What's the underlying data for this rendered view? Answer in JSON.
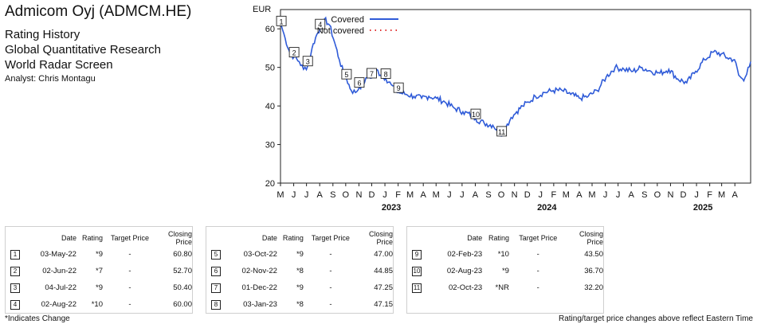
{
  "header": {
    "title": "Admicom Oyj (ADMCM.HE)",
    "line1": "Rating History",
    "line2": "Global Quantitative Research",
    "line3": "World Radar Screen",
    "analyst": "Analyst: Chris Montagu"
  },
  "chart_data": {
    "type": "line",
    "ylabel": "EUR",
    "ylim": [
      20,
      65
    ],
    "yticks": [
      20,
      30,
      40,
      50,
      60
    ],
    "xlim": [
      "2022-05-01",
      "2025-05-08"
    ],
    "month_ticks": [
      "M",
      "J",
      "J",
      "A",
      "S",
      "O",
      "N",
      "D",
      "J",
      "F",
      "M",
      "A",
      "M",
      "J",
      "J",
      "A",
      "S",
      "O",
      "N",
      "D",
      "J",
      "F",
      "M",
      "A",
      "M",
      "J",
      "J",
      "A",
      "S",
      "O",
      "N",
      "D",
      "J",
      "F",
      "M",
      "A"
    ],
    "year_labels": [
      "2023",
      "2024",
      "2025"
    ],
    "legend": [
      {
        "name": "Covered",
        "color": "#2f5bd8",
        "style": "solid"
      },
      {
        "name": "Not covered",
        "color": "#e03030",
        "style": "dotted"
      }
    ],
    "series": [
      {
        "name": "Covered",
        "points": [
          [
            "2022-05-03",
            60.8
          ],
          [
            "2022-05-12",
            57.5
          ],
          [
            "2022-05-24",
            53.5
          ],
          [
            "2022-06-02",
            52.7
          ],
          [
            "2022-06-14",
            51.5
          ],
          [
            "2022-06-24",
            49.5
          ],
          [
            "2022-07-04",
            50.4
          ],
          [
            "2022-07-14",
            55.0
          ],
          [
            "2022-07-25",
            58.5
          ],
          [
            "2022-08-02",
            60.0
          ],
          [
            "2022-08-12",
            62.5
          ],
          [
            "2022-08-24",
            61.0
          ],
          [
            "2022-09-05",
            56.5
          ],
          [
            "2022-09-16",
            52.0
          ],
          [
            "2022-09-26",
            48.5
          ],
          [
            "2022-10-03",
            47.0
          ],
          [
            "2022-10-14",
            44.0
          ],
          [
            "2022-10-24",
            43.5
          ],
          [
            "2022-11-02",
            44.85
          ],
          [
            "2022-11-14",
            46.0
          ],
          [
            "2022-11-24",
            48.0
          ],
          [
            "2022-12-01",
            47.25
          ],
          [
            "2022-12-12",
            49.5
          ],
          [
            "2022-12-22",
            48.0
          ],
          [
            "2023-01-03",
            47.15
          ],
          [
            "2023-01-16",
            45.5
          ],
          [
            "2023-01-26",
            44.0
          ],
          [
            "2023-02-02",
            43.5
          ],
          [
            "2023-02-20",
            43.0
          ],
          [
            "2023-03-10",
            42.5
          ],
          [
            "2023-03-28",
            42.0
          ],
          [
            "2023-04-14",
            42.5
          ],
          [
            "2023-05-02",
            42.0
          ],
          [
            "2023-05-22",
            41.0
          ],
          [
            "2023-06-12",
            39.5
          ],
          [
            "2023-07-03",
            38.5
          ],
          [
            "2023-07-24",
            37.5
          ],
          [
            "2023-08-02",
            36.7
          ],
          [
            "2023-08-22",
            35.5
          ],
          [
            "2023-09-11",
            35.0
          ],
          [
            "2023-09-25",
            33.5
          ],
          [
            "2023-10-02",
            32.2
          ],
          [
            "2023-10-12",
            34.5
          ],
          [
            "2023-10-24",
            37.0
          ],
          [
            "2023-11-06",
            38.5
          ],
          [
            "2023-11-20",
            40.0
          ],
          [
            "2023-12-04",
            41.0
          ],
          [
            "2023-12-20",
            42.5
          ],
          [
            "2024-01-10",
            43.5
          ],
          [
            "2024-01-31",
            44.0
          ],
          [
            "2024-02-21",
            44.0
          ],
          [
            "2024-03-12",
            43.0
          ],
          [
            "2024-04-01",
            42.0
          ],
          [
            "2024-04-22",
            42.5
          ],
          [
            "2024-05-13",
            44.0
          ],
          [
            "2024-06-03",
            47.5
          ],
          [
            "2024-06-24",
            50.0
          ],
          [
            "2024-07-15",
            49.5
          ],
          [
            "2024-08-05",
            49.0
          ],
          [
            "2024-08-26",
            50.0
          ],
          [
            "2024-09-16",
            49.0
          ],
          [
            "2024-10-07",
            48.5
          ],
          [
            "2024-10-28",
            49.5
          ],
          [
            "2024-11-18",
            47.0
          ],
          [
            "2024-12-09",
            46.0
          ],
          [
            "2024-12-30",
            49.0
          ],
          [
            "2025-01-20",
            52.0
          ],
          [
            "2025-02-10",
            54.0
          ],
          [
            "2025-02-28",
            53.5
          ],
          [
            "2025-03-14",
            52.5
          ],
          [
            "2025-03-31",
            52.0
          ],
          [
            "2025-04-10",
            48.0
          ],
          [
            "2025-04-22",
            46.5
          ],
          [
            "2025-05-02",
            50.0
          ],
          [
            "2025-05-08",
            51.5
          ]
        ]
      }
    ],
    "markers": [
      {
        "id": 1,
        "date": "2022-05-03",
        "price": 60.8
      },
      {
        "id": 2,
        "date": "2022-06-02",
        "price": 52.7
      },
      {
        "id": 3,
        "date": "2022-07-04",
        "price": 50.4
      },
      {
        "id": 4,
        "date": "2022-08-02",
        "price": 60.0
      },
      {
        "id": 5,
        "date": "2022-10-03",
        "price": 47.0
      },
      {
        "id": 6,
        "date": "2022-11-02",
        "price": 44.85
      },
      {
        "id": 7,
        "date": "2022-12-01",
        "price": 47.25
      },
      {
        "id": 8,
        "date": "2023-01-03",
        "price": 47.15
      },
      {
        "id": 9,
        "date": "2023-02-02",
        "price": 43.5
      },
      {
        "id": 10,
        "date": "2023-08-02",
        "price": 36.7
      },
      {
        "id": 11,
        "date": "2023-10-02",
        "price": 32.2
      }
    ]
  },
  "table": {
    "headers": {
      "date": "Date",
      "rating": "Rating",
      "target": "Target Price",
      "closing": "Closing Price"
    },
    "groups": [
      [
        {
          "num": "1",
          "date": "03-May-22",
          "rating": "*9",
          "target": "-",
          "closing": "60.80"
        },
        {
          "num": "2",
          "date": "02-Jun-22",
          "rating": "*7",
          "target": "-",
          "closing": "52.70"
        },
        {
          "num": "3",
          "date": "04-Jul-22",
          "rating": "*9",
          "target": "-",
          "closing": "50.40"
        },
        {
          "num": "4",
          "date": "02-Aug-22",
          "rating": "*10",
          "target": "-",
          "closing": "60.00"
        }
      ],
      [
        {
          "num": "5",
          "date": "03-Oct-22",
          "rating": "*9",
          "target": "-",
          "closing": "47.00"
        },
        {
          "num": "6",
          "date": "02-Nov-22",
          "rating": "*8",
          "target": "-",
          "closing": "44.85"
        },
        {
          "num": "7",
          "date": "01-Dec-22",
          "rating": "*9",
          "target": "-",
          "closing": "47.25"
        },
        {
          "num": "8",
          "date": "03-Jan-23",
          "rating": "*8",
          "target": "-",
          "closing": "47.15"
        }
      ],
      [
        {
          "num": "9",
          "date": "02-Feb-23",
          "rating": "*10",
          "target": "-",
          "closing": "43.50"
        },
        {
          "num": "10",
          "date": "02-Aug-23",
          "rating": "*9",
          "target": "-",
          "closing": "36.70"
        },
        {
          "num": "11",
          "date": "02-Oct-23",
          "rating": "*NR",
          "target": "-",
          "closing": "32.20"
        }
      ]
    ]
  },
  "footer": {
    "left": "*Indicates Change",
    "right": "Rating/target price changes above reflect Eastern Time"
  }
}
